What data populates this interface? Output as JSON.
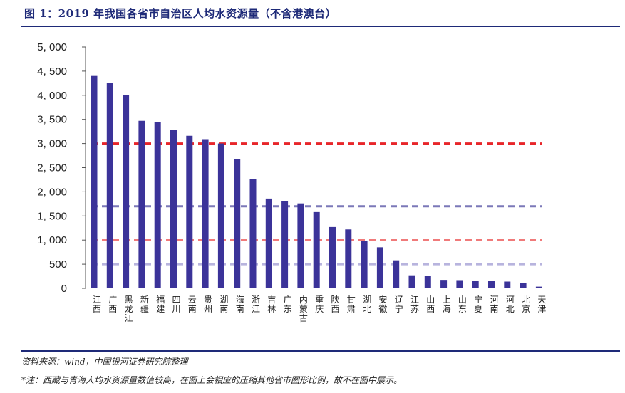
{
  "header": {
    "title": "图 1：2019 年我国各省市自治区人均水资源量（不含港澳台）"
  },
  "footer": {
    "source": "资料来源：wind，中国银河证券研究院整理",
    "note": "*注：西藏与青海人均水资源量数值较高，在图上会相应的压缩其他省市图形比例，故不在图中展示。"
  },
  "chart_data": {
    "type": "bar",
    "title": "",
    "xlabel": "",
    "ylabel": "",
    "ylim": [
      0,
      5000
    ],
    "yticks": [
      0,
      500,
      1000,
      1500,
      2000,
      2500,
      3000,
      3500,
      4000,
      4500,
      5000
    ],
    "ytick_labels": [
      "0",
      "500",
      "1, 000",
      "1, 500",
      "2, 000",
      "2, 500",
      "3, 000",
      "3, 500",
      "4, 000",
      "4, 500",
      "5, 000"
    ],
    "grid": false,
    "bar_color": "#3b3399",
    "categories": [
      "江西",
      "广西",
      "黑龙江",
      "新疆",
      "福建",
      "四川",
      "云南",
      "贵州",
      "湖南",
      "海南",
      "浙江",
      "吉林",
      "广东",
      "内蒙古",
      "重庆",
      "陕西",
      "甘肃",
      "湖北",
      "安徽",
      "辽宁",
      "江苏",
      "山西",
      "上海",
      "山东",
      "宁夏",
      "河南",
      "河北",
      "北京",
      "天津"
    ],
    "values": [
      4400,
      4250,
      4000,
      3470,
      3440,
      3280,
      3160,
      3090,
      3000,
      2680,
      2270,
      1860,
      1800,
      1760,
      1580,
      1270,
      1220,
      980,
      850,
      580,
      270,
      260,
      175,
      170,
      160,
      160,
      140,
      115,
      35
    ],
    "reference_lines": [
      {
        "value": 3000,
        "color": "#e8262a"
      },
      {
        "value": 1700,
        "color": "#7b78b8"
      },
      {
        "value": 1000,
        "color": "#f07a7a"
      },
      {
        "value": 500,
        "color": "#b8b4de"
      }
    ]
  }
}
